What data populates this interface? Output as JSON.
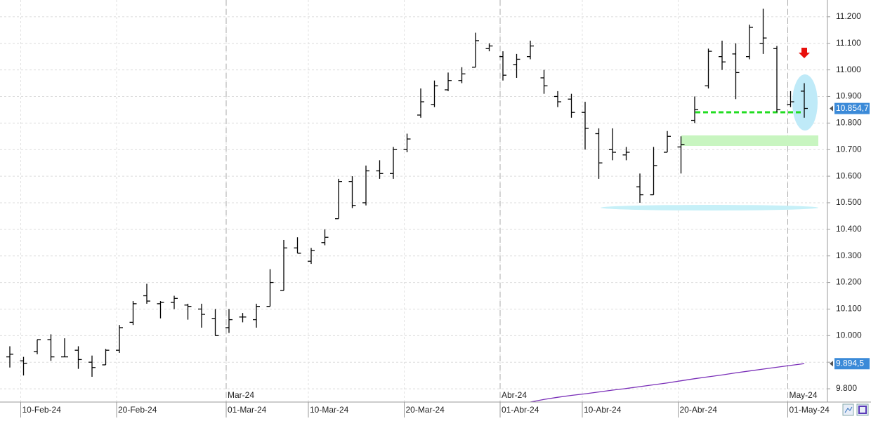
{
  "chart_data": {
    "type": "ohlc",
    "color": "#000000",
    "grid": true,
    "categories": [
      null,
      "10-Feb-24",
      null,
      null,
      null,
      null,
      null,
      null,
      "20-Feb-24",
      null,
      null,
      null,
      null,
      null,
      null,
      null,
      "01-Mar-24",
      null,
      null,
      null,
      null,
      null,
      "10-Mar-24",
      null,
      null,
      null,
      null,
      null,
      null,
      "20-Mar-24",
      null,
      null,
      null,
      null,
      null,
      null,
      "01-Abr-24",
      null,
      null,
      null,
      null,
      null,
      "10-Abr-24",
      null,
      null,
      null,
      null,
      null,
      null,
      "20-Abr-24",
      null,
      null,
      null,
      null,
      null,
      null,
      null,
      "01-May-24",
      null
    ],
    "period_labels": [
      null,
      null,
      null,
      null,
      null,
      null,
      null,
      null,
      null,
      null,
      null,
      null,
      null,
      null,
      null,
      null,
      "Mar-24",
      null,
      null,
      null,
      null,
      null,
      null,
      null,
      null,
      null,
      null,
      null,
      null,
      null,
      null,
      null,
      null,
      null,
      null,
      null,
      "Abr-24",
      null,
      null,
      null,
      null,
      null,
      null,
      null,
      null,
      null,
      null,
      null,
      null,
      null,
      null,
      null,
      null,
      null,
      null,
      null,
      null,
      "May-24",
      null
    ],
    "open": [
      9920,
      9905,
      9940,
      9985,
      9920,
      9945,
      9900,
      9890,
      9945,
      10050,
      10150,
      10120,
      10125,
      10115,
      10100,
      10065,
      10030,
      10070,
      10060,
      10110,
      10170,
      10330,
      10280,
      10350,
      10440,
      10580,
      10500,
      10620,
      10610,
      10700,
      10830,
      10870,
      10925,
      10960,
      11010,
      11080,
      11050,
      11020,
      11050,
      10970,
      10900,
      10890,
      10840,
      10760,
      10700,
      10680,
      10560,
      10530,
      10690,
      10710,
      10810,
      10940,
      11050,
      11060,
      11050,
      11100,
      11080,
      10870,
      10920
    ],
    "high": [
      9960,
      9920,
      9985,
      10005,
      9990,
      9960,
      9925,
      9950,
      10040,
      10130,
      10195,
      10130,
      10150,
      10120,
      10120,
      10100,
      10100,
      10085,
      10120,
      10250,
      10360,
      10370,
      10330,
      10400,
      10590,
      10600,
      10640,
      10660,
      10710,
      10760,
      10930,
      10960,
      10990,
      11010,
      11140,
      11100,
      11070,
      11060,
      11110,
      11000,
      10920,
      10910,
      10880,
      10780,
      10780,
      10710,
      10610,
      10710,
      10770,
      10750,
      10900,
      11080,
      11110,
      11100,
      11170,
      11230,
      11090,
      10920,
      10950
    ],
    "low": [
      9880,
      9850,
      9930,
      9905,
      9920,
      9875,
      9845,
      9890,
      9935,
      10040,
      10120,
      10065,
      10100,
      10060,
      10030,
      10000,
      10010,
      10050,
      10030,
      10110,
      10170,
      10310,
      10270,
      10340,
      10440,
      10480,
      10490,
      10590,
      10590,
      10690,
      10820,
      10860,
      10920,
      10950,
      11010,
      11070,
      10960,
      10970,
      11040,
      10910,
      10860,
      10820,
      10700,
      10590,
      10660,
      10660,
      10500,
      10530,
      10690,
      10610,
      10800,
      10930,
      11000,
      10890,
      11040,
      11060,
      10840,
      10860,
      10820
    ],
    "close": [
      9930,
      9895,
      9985,
      9920,
      9920,
      9910,
      9880,
      9945,
      10030,
      10120,
      10130,
      10125,
      10140,
      10110,
      10080,
      10000,
      10060,
      10070,
      10110,
      10200,
      10330,
      10310,
      10320,
      10370,
      10580,
      10490,
      10620,
      10610,
      10700,
      10740,
      10880,
      10940,
      10960,
      10985,
      11110,
      11090,
      10980,
      11040,
      11090,
      10940,
      10880,
      10840,
      10780,
      10650,
      10690,
      10690,
      10530,
      10640,
      10750,
      10720,
      10850,
      11070,
      11030,
      10990,
      11160,
      11120,
      10850,
      10880,
      10855
    ],
    "ma_color": "#7a2fb8",
    "ma_values": [
      null,
      null,
      null,
      null,
      null,
      null,
      null,
      null,
      null,
      null,
      null,
      null,
      null,
      null,
      null,
      null,
      null,
      null,
      null,
      null,
      null,
      null,
      null,
      null,
      null,
      null,
      null,
      null,
      null,
      null,
      null,
      null,
      null,
      null,
      null,
      null,
      null,
      null,
      9750,
      9760,
      9768,
      9775,
      9781,
      9788,
      9795,
      9801,
      9808,
      9815,
      9822,
      9830,
      9838,
      9845,
      9852,
      9860,
      9867,
      9874,
      9881,
      9888,
      9894.5
    ],
    "ylim": [
      9750,
      11263
    ],
    "yticks": [
      {
        "value": 9800,
        "label": "9.800"
      },
      {
        "value": 9900,
        "label": "9.900"
      },
      {
        "value": 10000,
        "label": "10.000"
      },
      {
        "value": 10100,
        "label": "10.100"
      },
      {
        "value": 10200,
        "label": "10.200"
      },
      {
        "value": 10300,
        "label": "10.300"
      },
      {
        "value": 10400,
        "label": "10.400"
      },
      {
        "value": 10500,
        "label": "10.500"
      },
      {
        "value": 10600,
        "label": "10.600"
      },
      {
        "value": 10700,
        "label": "10.700"
      },
      {
        "value": 10800,
        "label": "10.800"
      },
      {
        "value": 10900,
        "label": "10.900"
      },
      {
        "value": 11000,
        "label": "11.000"
      },
      {
        "value": 11100,
        "label": "11.100"
      },
      {
        "value": 11200,
        "label": "11.200"
      }
    ],
    "last_price": {
      "value": 10854.7,
      "label": "10.854,7"
    },
    "ma_last": {
      "value": 9894.5,
      "label": "9.894,5"
    }
  }
}
